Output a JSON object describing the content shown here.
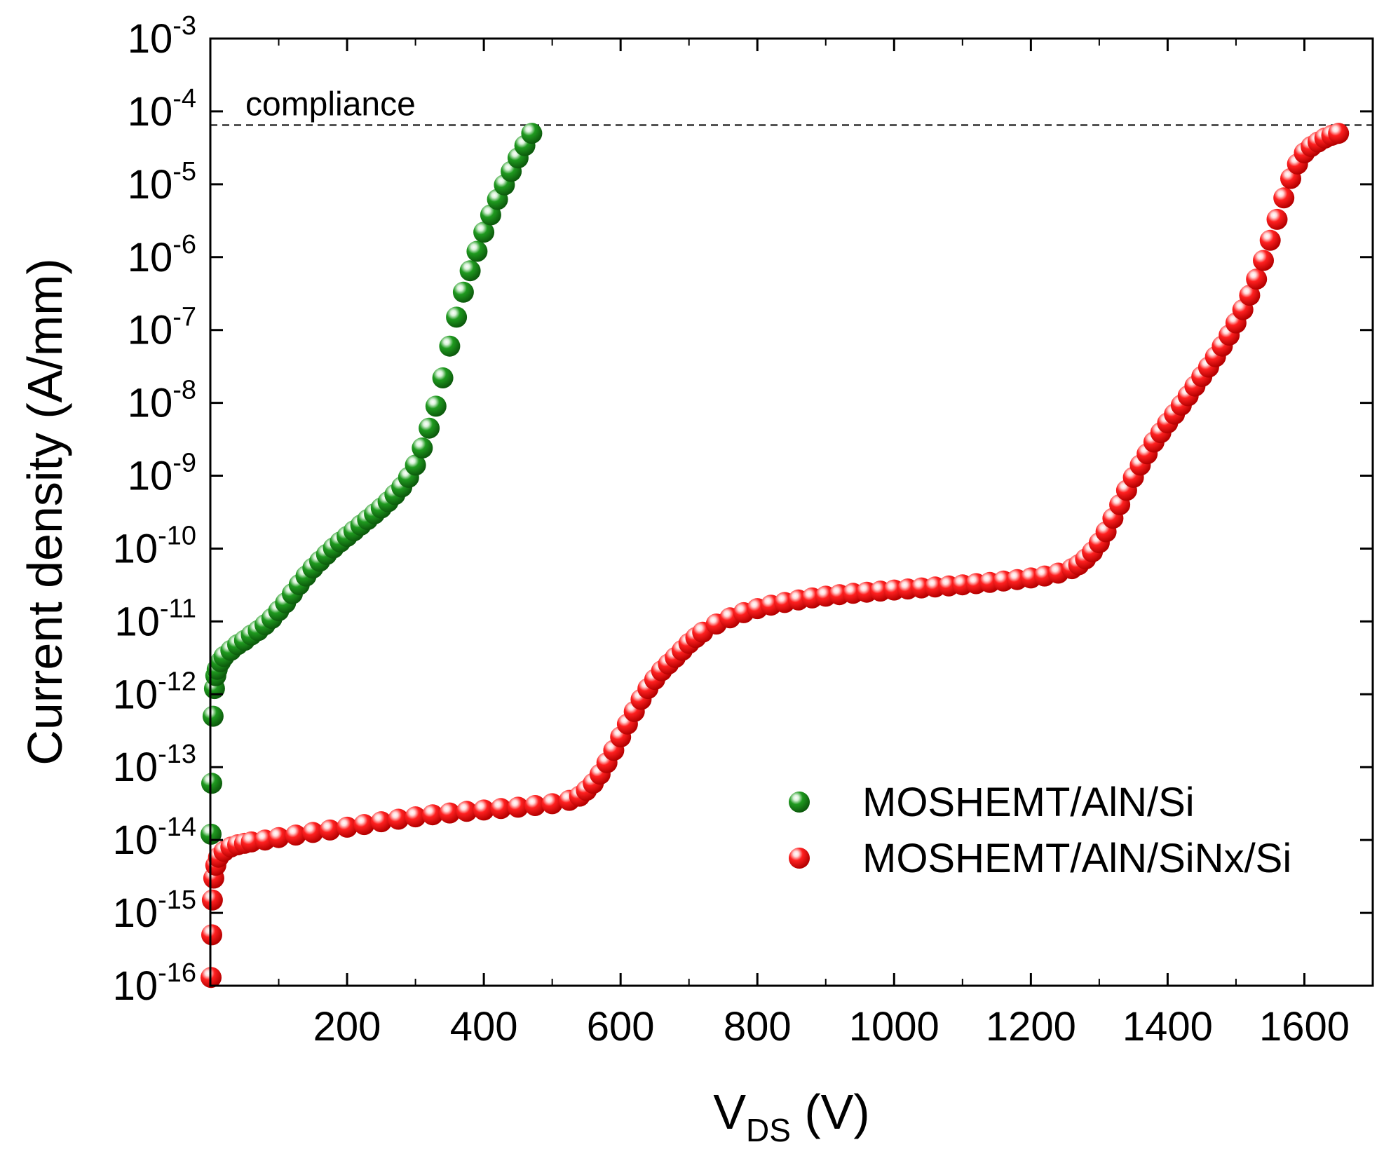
{
  "chart_data": {
    "type": "scatter",
    "title": "",
    "xlabel": "V",
    "xlabel_sub": "DS",
    "xlabel_unit": " (V)",
    "ylabel": "Current density (A/mm)",
    "xlim": [
      0,
      1700
    ],
    "ylim_log10": [
      -16,
      -3
    ],
    "x_ticks": [
      "200",
      "400",
      "600",
      "800",
      "1000",
      "1200",
      "1400",
      "1600"
    ],
    "x_tick_values": [
      200,
      400,
      600,
      800,
      1000,
      1200,
      1400,
      1600
    ],
    "y_ticks": [
      {
        "base": "10",
        "exp": "-3"
      },
      {
        "base": "10",
        "exp": "-4"
      },
      {
        "base": "10",
        "exp": "-5"
      },
      {
        "base": "10",
        "exp": "-6"
      },
      {
        "base": "10",
        "exp": "-7"
      },
      {
        "base": "10",
        "exp": "-8"
      },
      {
        "base": "10",
        "exp": "-9"
      },
      {
        "base": "10",
        "exp": "-10"
      },
      {
        "base": "10",
        "exp": "-11"
      },
      {
        "base": "10",
        "exp": "-12"
      },
      {
        "base": "10",
        "exp": "-13"
      },
      {
        "base": "10",
        "exp": "-14"
      },
      {
        "base": "10",
        "exp": "-15"
      },
      {
        "base": "10",
        "exp": "-16"
      }
    ],
    "y_tick_values_log10": [
      -3,
      -4,
      -5,
      -6,
      -7,
      -8,
      -9,
      -10,
      -11,
      -12,
      -13,
      -14,
      -15,
      -16
    ],
    "compliance": {
      "label": "compliance",
      "value": 6.5e-05
    },
    "legend_position": "bottom-right",
    "series": [
      {
        "name": "MOSHEMT/AlN/Si",
        "color": "#1a8a1a",
        "x": [
          1,
          2,
          4,
          6,
          8,
          10,
          15,
          20,
          30,
          40,
          50,
          60,
          70,
          80,
          90,
          100,
          110,
          120,
          130,
          140,
          150,
          160,
          170,
          180,
          190,
          200,
          210,
          220,
          230,
          240,
          250,
          260,
          270,
          280,
          290,
          300,
          310,
          320,
          330,
          340,
          350,
          360,
          370,
          380,
          390,
          400,
          410,
          420,
          430,
          440,
          450,
          460,
          470
        ],
        "y": [
          1.2e-14,
          6e-14,
          5e-13,
          1.2e-12,
          1.8e-12,
          2.2e-12,
          2.8e-12,
          3.3e-12,
          4e-12,
          4.8e-12,
          5.5e-12,
          6.5e-12,
          7.5e-12,
          9e-12,
          1.1e-11,
          1.4e-11,
          1.8e-11,
          2.4e-11,
          3.2e-11,
          4.2e-11,
          5.4e-11,
          6.7e-11,
          8.3e-11,
          1.02e-10,
          1.23e-10,
          1.47e-10,
          1.75e-10,
          2.1e-10,
          2.5e-10,
          3e-10,
          3.6e-10,
          4.4e-10,
          5.5e-10,
          7e-10,
          9.5e-10,
          1.4e-09,
          2.4e-09,
          4.5e-09,
          9e-09,
          2.2e-08,
          6e-08,
          1.5e-07,
          3.3e-07,
          6.5e-07,
          1.2e-06,
          2.2e-06,
          3.8e-06,
          6.2e-06,
          9.8e-06,
          1.5e-05,
          2.3e-05,
          3.4e-05,
          5e-05
        ]
      },
      {
        "name": "MOSHEMT/AlN/SiNx/Si",
        "color": "#ff1a1a",
        "x": [
          1,
          2,
          3,
          5,
          8,
          12,
          20,
          30,
          40,
          50,
          60,
          80,
          100,
          125,
          150,
          175,
          200,
          225,
          250,
          275,
          300,
          325,
          350,
          375,
          400,
          425,
          450,
          475,
          500,
          525,
          540,
          550,
          560,
          570,
          580,
          590,
          600,
          610,
          620,
          630,
          640,
          650,
          660,
          670,
          680,
          690,
          700,
          710,
          720,
          740,
          760,
          780,
          800,
          820,
          840,
          860,
          880,
          900,
          920,
          940,
          960,
          980,
          1000,
          1020,
          1040,
          1060,
          1080,
          1100,
          1120,
          1140,
          1160,
          1180,
          1200,
          1220,
          1240,
          1260,
          1270,
          1280,
          1290,
          1300,
          1310,
          1320,
          1330,
          1340,
          1350,
          1360,
          1370,
          1380,
          1390,
          1400,
          1410,
          1420,
          1430,
          1440,
          1450,
          1460,
          1470,
          1480,
          1490,
          1500,
          1510,
          1520,
          1530,
          1540,
          1550,
          1560,
          1570,
          1580,
          1590,
          1600,
          1610,
          1620,
          1630,
          1640,
          1650
        ],
        "y": [
          1.3e-16,
          5e-16,
          1.5e-15,
          3e-15,
          4.5e-15,
          5.8e-15,
          7e-15,
          8e-15,
          8.6e-15,
          9e-15,
          9.4e-15,
          1e-14,
          1.08e-14,
          1.17e-14,
          1.27e-14,
          1.37e-14,
          1.5e-14,
          1.63e-14,
          1.78e-14,
          1.93e-14,
          2.08e-14,
          2.22e-14,
          2.35e-14,
          2.47e-14,
          2.58e-14,
          2.7e-14,
          2.82e-14,
          2.97e-14,
          3.15e-14,
          3.5e-14,
          4e-14,
          4.8e-14,
          6e-14,
          8e-14,
          1.15e-13,
          1.7e-13,
          2.6e-13,
          3.9e-13,
          5.8e-13,
          8.5e-13,
          1.2e-12,
          1.6e-12,
          2.1e-12,
          2.6e-12,
          3.2e-12,
          4e-12,
          5e-12,
          6e-12,
          7.1e-12,
          9.2e-12,
          1.12e-11,
          1.32e-11,
          1.5e-11,
          1.67e-11,
          1.82e-11,
          1.97e-11,
          2.1e-11,
          2.22e-11,
          2.33e-11,
          2.43e-11,
          2.52e-11,
          2.61e-11,
          2.7e-11,
          2.79e-11,
          2.88e-11,
          2.97e-11,
          3.07e-11,
          3.18e-11,
          3.3e-11,
          3.43e-11,
          3.58e-11,
          3.75e-11,
          3.95e-11,
          4.2e-11,
          4.6e-11,
          5.3e-11,
          6e-11,
          7.2e-11,
          9e-11,
          1.2e-10,
          1.7e-10,
          2.6e-10,
          4e-10,
          6.3e-10,
          9.5e-10,
          1.4e-09,
          2e-09,
          2.9e-09,
          3.9e-09,
          5.3e-09,
          7e-09,
          9.3e-09,
          1.25e-08,
          1.7e-08,
          2.3e-08,
          3.1e-08,
          4.3e-08,
          6e-08,
          8.5e-08,
          1.25e-07,
          1.9e-07,
          3e-07,
          5e-07,
          9e-07,
          1.7e-06,
          3.3e-06,
          6.5e-06,
          1.2e-05,
          1.9e-05,
          2.7e-05,
          3.3e-05,
          3.8e-05,
          4.3e-05,
          4.7e-05,
          5e-05
        ]
      }
    ]
  }
}
